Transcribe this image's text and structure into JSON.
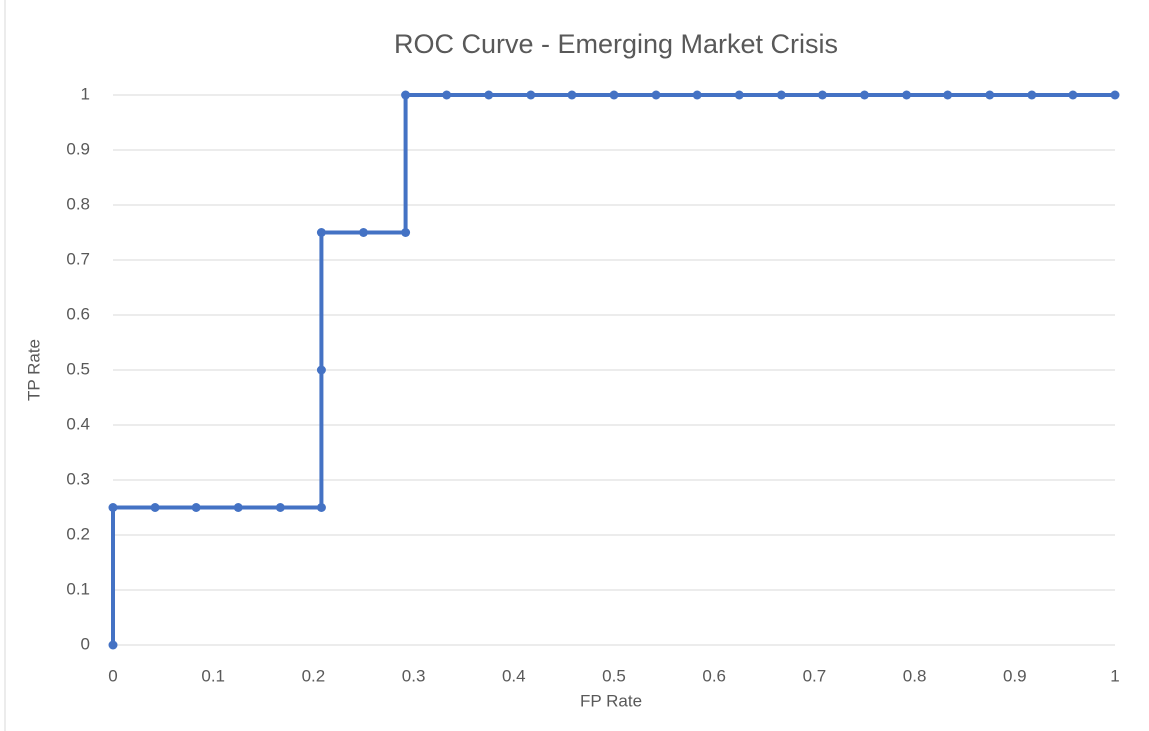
{
  "chart_data": {
    "type": "line",
    "title": "ROC Curve - Emerging Market Crisis",
    "x_label": "FP Rate",
    "y_label": "TP Rate",
    "x": [
      0,
      0,
      0.042,
      0.083,
      0.125,
      0.167,
      0.208,
      0.208,
      0.208,
      0.25,
      0.292,
      0.292,
      0.333,
      0.375,
      0.417,
      0.458,
      0.5,
      0.542,
      0.583,
      0.625,
      0.667,
      0.708,
      0.75,
      0.792,
      0.833,
      0.875,
      0.917,
      0.958,
      1
    ],
    "series": [
      {
        "name": "TP Rate",
        "color": "#4472c4",
        "values": [
          0,
          0.25,
          0.25,
          0.25,
          0.25,
          0.25,
          0.25,
          0.5,
          0.75,
          0.75,
          0.75,
          1,
          1,
          1,
          1,
          1,
          1,
          1,
          1,
          1,
          1,
          1,
          1,
          1,
          1,
          1,
          1,
          1,
          1
        ]
      }
    ],
    "xlim": [
      0,
      1
    ],
    "xticks": [
      0,
      0.1,
      0.2,
      0.3,
      0.4,
      0.5,
      0.6,
      0.7,
      0.8,
      0.9,
      1
    ],
    "ylim": [
      0,
      1
    ],
    "yticks": [
      0,
      0.1,
      0.2,
      0.3,
      0.4,
      0.5,
      0.6,
      0.7,
      0.8,
      0.9,
      1
    ],
    "grid": true
  }
}
